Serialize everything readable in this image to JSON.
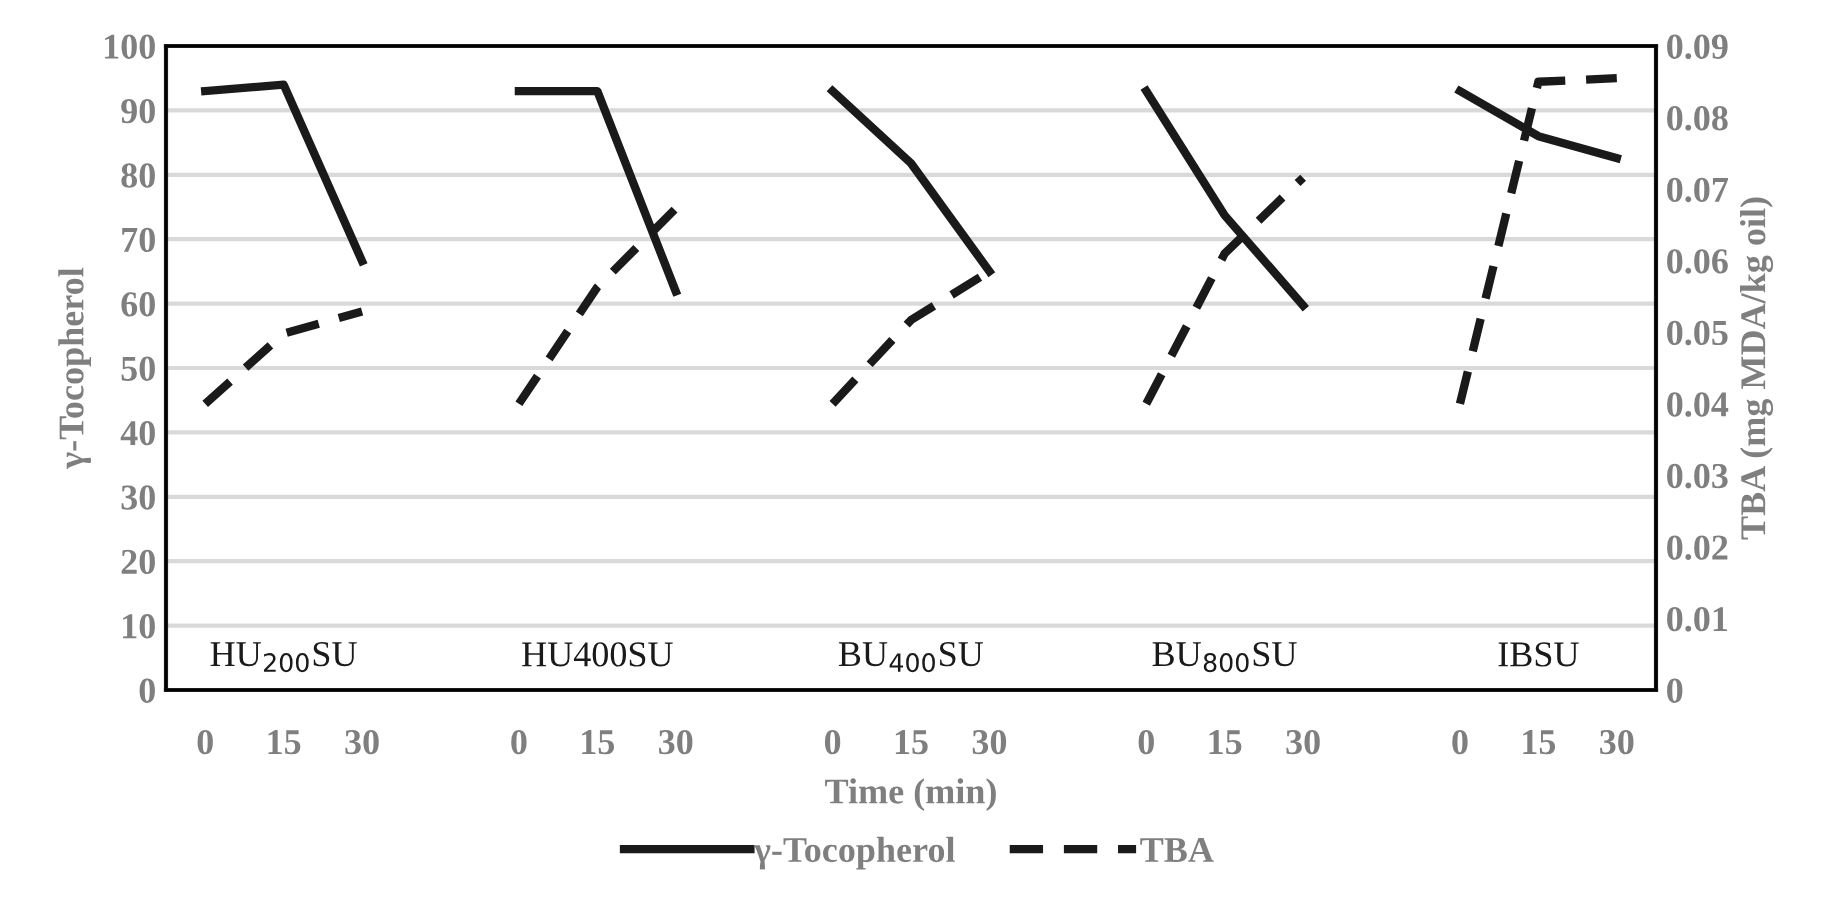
{
  "chart_data": {
    "type": "line",
    "xlabel": "Time (min)",
    "ylabel": "γ-Tocopherol",
    "y2label": "TBA (mg MDA/kg oil)",
    "categories": [
      "0",
      "15",
      "30",
      null,
      "0",
      "15",
      "30",
      null,
      "0",
      "15",
      "30",
      null,
      "0",
      "15",
      "30",
      null,
      "0",
      "15",
      "30"
    ],
    "series": [
      {
        "name": "γ-Tocopherol",
        "color": "#1a1a1a",
        "line_style": "solid",
        "values": [
          93,
          94,
          66.6,
          null,
          93,
          93,
          61.9,
          null,
          93,
          81.8,
          65,
          null,
          93,
          73.7,
          59.7,
          null,
          93,
          86,
          82.6
        ]
      },
      {
        "name": "TBA",
        "color": "#1a1a1a",
        "line_style": "dashed",
        "axis": "y2",
        "values": [
          0.04,
          0.0498,
          0.0529,
          null,
          0.04,
          0.0563,
          0.0673,
          null,
          0.04,
          0.0517,
          0.0585,
          null,
          0.04,
          0.061,
          0.0716,
          null,
          0.04,
          0.085,
          0.0855
        ]
      }
    ],
    "ylim": [
      0,
      100
    ],
    "yticks": [
      0,
      10,
      20,
      30,
      40,
      50,
      60,
      70,
      80,
      90,
      100
    ],
    "y2lim": [
      0,
      0.09
    ],
    "y2ticks": [
      0,
      0.01,
      0.02,
      0.03,
      0.04,
      0.05,
      0.06,
      0.07,
      0.08,
      0.09
    ],
    "grid": "y",
    "legend": "bottom",
    "annotations": [
      "HU$_{200}$SU",
      "HU400SU",
      "BU$_{400}$SU",
      "BU$_{800}$SU",
      "IBSU"
    ]
  }
}
